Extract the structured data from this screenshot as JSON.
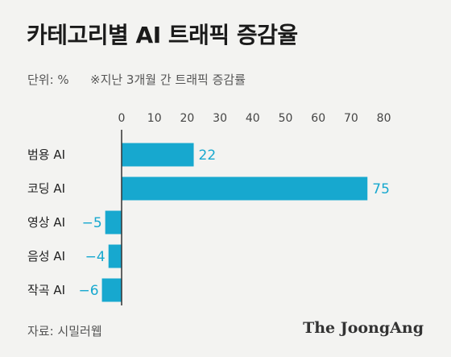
{
  "title": "카테고리별 AI 트래픽 증감율",
  "unit": "단위: %",
  "note": "※지난 3개월 간 트래픽 증감률",
  "source": "자료: 시밀러웹",
  "brand": "The JoongAng",
  "colors": {
    "bar": "#17a8cf",
    "axis": "#333333",
    "tick": "#444444",
    "label": "#222222"
  },
  "chart_data": {
    "type": "bar",
    "orientation": "horizontal",
    "categories": [
      "범용 AI",
      "코딩 AI",
      "영상 AI",
      "음성 AI",
      "작곡 AI"
    ],
    "values": [
      22,
      75,
      -5,
      -4,
      -6
    ],
    "value_labels": [
      "22",
      "75",
      "−5",
      "−4",
      "−6"
    ],
    "xticks": [
      0,
      10,
      20,
      30,
      40,
      50,
      60,
      70,
      80
    ],
    "xlim": [
      -7,
      80
    ],
    "grid": false,
    "legend": "none"
  }
}
